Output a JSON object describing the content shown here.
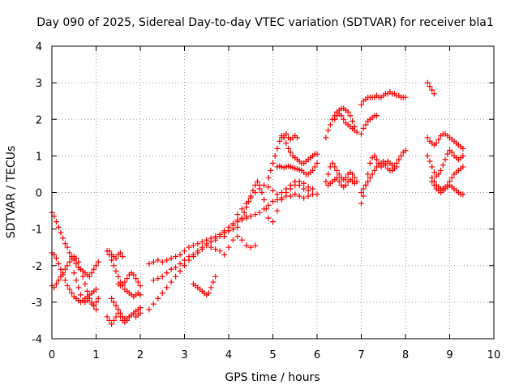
{
  "chart_data": {
    "type": "scatter",
    "title": "Day 090 of 2025, Sidereal Day-to-day VTEC variation (SDTVAR) for receiver bla1",
    "xlabel": "GPS time / hours",
    "ylabel": "SDTVAR / TECUs",
    "xlim": [
      0,
      10
    ],
    "ylim": [
      -4,
      4
    ],
    "xticks": [
      "0",
      "1",
      "2",
      "3",
      "4",
      "5",
      "6",
      "7",
      "8",
      "9",
      "10"
    ],
    "yticks": [
      "-4",
      "-3",
      "-2",
      "-1",
      "0",
      "1",
      "2",
      "3",
      "4"
    ],
    "grid": true,
    "legend": "none",
    "marker": "+",
    "color": "#ff0000",
    "series": [
      {
        "x": [
          0.0,
          0.05,
          0.1,
          0.15,
          0.2,
          0.25,
          0.3,
          0.35,
          0.4,
          0.45,
          0.5,
          0.55,
          0.6,
          0.65,
          0.7,
          0.75,
          0.8,
          0.85,
          0.9,
          0.95,
          1.0,
          1.05
        ],
        "y": [
          -0.55,
          -0.65,
          -0.8,
          -0.95,
          -1.1,
          -1.25,
          -1.4,
          -1.5,
          -1.65,
          -1.75,
          -1.85,
          -1.95,
          -2.05,
          -2.1,
          -2.15,
          -2.2,
          -2.25,
          -2.3,
          -2.2,
          -2.1,
          -2.0,
          -1.9
        ]
      },
      {
        "x": [
          0.0,
          0.05,
          0.1,
          0.15,
          0.2,
          0.25,
          0.3,
          0.35,
          0.4,
          0.45,
          0.5,
          0.55,
          0.6,
          0.65,
          0.7,
          0.75,
          0.8,
          0.85,
          0.9,
          0.95,
          1.0
        ],
        "y": [
          -1.65,
          -1.7,
          -1.8,
          -1.95,
          -2.1,
          -2.25,
          -2.4,
          -2.55,
          -2.65,
          -2.75,
          -2.85,
          -2.9,
          -2.95,
          -3.0,
          -2.95,
          -2.9,
          -2.85,
          -2.8,
          -2.75,
          -2.7,
          -2.65
        ]
      },
      {
        "x": [
          0.0,
          0.05,
          0.1,
          0.15,
          0.2,
          0.25,
          0.3,
          0.35,
          0.4,
          0.45,
          0.5,
          0.55,
          0.6,
          0.65,
          0.7,
          0.75,
          0.8,
          0.85,
          0.9,
          0.95,
          1.0
        ],
        "y": [
          -2.55,
          -2.6,
          -2.5,
          -2.4,
          -2.3,
          -2.2,
          -2.1,
          -2.0,
          -1.9,
          -1.8,
          -1.75,
          -1.8,
          -1.9,
          -2.1,
          -2.3,
          -2.5,
          -2.7,
          -2.9,
          -3.0,
          -3.1,
          -3.2
        ]
      },
      {
        "x": [
          0.5,
          0.55,
          0.6,
          0.65,
          0.7,
          0.75,
          0.8,
          0.85,
          0.9,
          0.95,
          1.0,
          1.05
        ],
        "y": [
          -2.2,
          -2.4,
          -2.6,
          -2.8,
          -2.95,
          -3.0,
          -2.95,
          -2.9,
          -3.05,
          -3.1,
          -3.0,
          -2.9
        ]
      },
      {
        "x": [
          1.25,
          1.3,
          1.35,
          1.4,
          1.45,
          1.5,
          1.55,
          1.6,
          1.65,
          1.7,
          1.75,
          1.8,
          1.85,
          1.9,
          1.95,
          2.0
        ],
        "y": [
          -1.6,
          -1.7,
          -1.85,
          -2.0,
          -2.15,
          -2.3,
          -2.45,
          -2.55,
          -2.65,
          -2.7,
          -2.75,
          -2.8,
          -2.85,
          -2.8,
          -2.75,
          -2.8
        ]
      },
      {
        "x": [
          1.3,
          1.35,
          1.4,
          1.45,
          1.5,
          1.55,
          1.6
        ],
        "y": [
          -1.6,
          -1.7,
          -1.75,
          -1.8,
          -1.7,
          -1.65,
          -1.75
        ]
      },
      {
        "x": [
          1.25,
          1.3,
          1.35,
          1.4,
          1.45,
          1.5,
          1.55,
          1.6,
          1.65,
          1.7,
          1.75,
          1.8,
          1.85,
          1.9,
          1.95,
          2.0
        ],
        "y": [
          -3.4,
          -3.5,
          -3.6,
          -3.5,
          -3.4,
          -3.3,
          -3.4,
          -3.5,
          -3.55,
          -3.5,
          -3.4,
          -3.35,
          -3.3,
          -3.4,
          -3.35,
          -3.3
        ]
      },
      {
        "x": [
          1.35,
          1.4,
          1.45,
          1.5,
          1.55,
          1.6,
          1.65,
          1.7,
          1.75,
          1.8,
          1.85,
          1.9,
          1.95,
          2.0
        ],
        "y": [
          -2.9,
          -3.0,
          -3.1,
          -3.2,
          -3.3,
          -3.4,
          -3.45,
          -3.45,
          -3.4,
          -3.35,
          -3.3,
          -3.25,
          -3.2,
          -3.15
        ]
      },
      {
        "x": [
          1.5,
          1.55,
          1.6,
          1.65,
          1.7,
          1.75,
          1.8,
          1.85,
          1.9,
          1.95,
          2.0
        ],
        "y": [
          -2.5,
          -2.55,
          -2.5,
          -2.45,
          -2.35,
          -2.25,
          -2.2,
          -2.25,
          -2.35,
          -2.45,
          -2.55
        ]
      },
      {
        "x": [
          2.2,
          2.3,
          2.4,
          2.5,
          2.6,
          2.7,
          2.8,
          2.9,
          3.0,
          3.1,
          3.2,
          3.3,
          3.4,
          3.5,
          3.6,
          3.7,
          3.8,
          3.9,
          4.0,
          4.1,
          4.2
        ],
        "y": [
          -1.95,
          -1.9,
          -1.85,
          -1.9,
          -1.85,
          -1.8,
          -1.75,
          -1.7,
          -1.6,
          -1.5,
          -1.45,
          -1.4,
          -1.35,
          -1.3,
          -1.25,
          -1.2,
          -1.15,
          -1.1,
          -1.05,
          -1.0,
          -0.95
        ]
      },
      {
        "x": [
          2.2,
          2.3,
          2.4,
          2.5,
          2.6,
          2.7,
          2.8,
          2.9,
          3.0,
          3.1,
          3.2,
          3.3,
          3.4,
          3.5,
          3.6,
          3.7,
          3.8,
          3.9,
          4.0,
          4.1,
          4.2,
          4.3,
          4.4
        ],
        "y": [
          -3.2,
          -3.05,
          -2.9,
          -2.75,
          -2.6,
          -2.45,
          -2.3,
          -2.15,
          -2.0,
          -1.85,
          -1.75,
          -1.65,
          -1.55,
          -1.45,
          -1.35,
          -1.25,
          -1.15,
          -1.05,
          -0.95,
          -0.85,
          -0.75,
          -0.7,
          -0.65
        ]
      },
      {
        "x": [
          2.3,
          2.4,
          2.5,
          2.6,
          2.7,
          2.8,
          2.9,
          3.0,
          3.1,
          3.2,
          3.3,
          3.4,
          3.5,
          3.6,
          3.7,
          3.8,
          3.9,
          4.0
        ],
        "y": [
          -2.4,
          -2.35,
          -2.3,
          -2.2,
          -2.1,
          -2.05,
          -1.95,
          -1.85,
          -1.75,
          -1.7,
          -1.6,
          -1.5,
          -1.4,
          -1.35,
          -1.3,
          -1.2,
          -1.1,
          -1.05
        ]
      },
      {
        "x": [
          3.2,
          3.25,
          3.3,
          3.35,
          3.4,
          3.45,
          3.5,
          3.55,
          3.6,
          3.65,
          3.7
        ],
        "y": [
          -2.5,
          -2.55,
          -2.6,
          -2.65,
          -2.7,
          -2.75,
          -2.8,
          -2.75,
          -2.6,
          -2.45,
          -2.3
        ]
      },
      {
        "x": [
          3.6,
          3.7,
          3.8,
          3.9,
          4.0,
          4.1,
          4.2,
          4.3,
          4.4,
          4.5,
          4.6
        ],
        "y": [
          -1.5,
          -1.55,
          -1.6,
          -1.7,
          -1.5,
          -1.3,
          -1.2,
          -1.3,
          -1.45,
          -1.5,
          -1.45
        ]
      },
      {
        "x": [
          3.9,
          4.0,
          4.1,
          4.2,
          4.3,
          4.4,
          4.5,
          4.6,
          4.7,
          4.8,
          4.9,
          5.0,
          5.1,
          5.2,
          5.3,
          5.4,
          5.5,
          5.6,
          5.7,
          5.8,
          5.9,
          6.0
        ],
        "y": [
          -1.2,
          -1.05,
          -0.9,
          -0.8,
          -0.75,
          -0.7,
          -0.65,
          -0.6,
          -0.55,
          -0.45,
          -0.35,
          -0.25,
          -0.2,
          -0.15,
          -0.1,
          -0.1,
          -0.05,
          -0.1,
          -0.15,
          -0.1,
          -0.05,
          -0.05
        ]
      },
      {
        "x": [
          4.2,
          4.3,
          4.4,
          4.5,
          4.6,
          4.7,
          4.8,
          4.9,
          5.0,
          5.1,
          5.2,
          5.3,
          5.4,
          5.5,
          5.6,
          5.7,
          5.8
        ],
        "y": [
          -0.6,
          -0.45,
          -0.3,
          -0.15,
          0.0,
          0.1,
          0.2,
          0.15,
          0.05,
          -0.05,
          0.0,
          0.1,
          0.2,
          0.3,
          0.2,
          0.1,
          0.05
        ]
      },
      {
        "x": [
          4.3,
          4.35,
          4.4,
          4.45,
          4.5,
          4.55,
          4.6,
          4.65,
          4.7,
          4.75,
          4.8,
          4.85,
          4.9
        ],
        "y": [
          -0.7,
          -0.55,
          -0.4,
          -0.25,
          -0.1,
          0.05,
          0.2,
          0.3,
          0.2,
          0.0,
          -0.2,
          -0.45,
          -0.7
        ]
      },
      {
        "x": [
          4.9,
          4.95,
          5.0,
          5.05,
          5.1,
          5.15,
          5.2,
          5.25,
          5.3,
          5.35,
          5.4,
          5.45,
          5.5,
          5.55,
          5.6,
          5.65,
          5.7,
          5.75,
          5.8,
          5.85,
          5.9,
          5.95,
          6.0
        ],
        "y": [
          0.4,
          0.6,
          0.8,
          1.0,
          1.2,
          1.4,
          1.55,
          1.5,
          1.35,
          1.2,
          1.1,
          1.0,
          0.95,
          0.9,
          0.85,
          0.8,
          0.8,
          0.85,
          0.9,
          0.95,
          1.0,
          1.05,
          1.05
        ]
      },
      {
        "x": [
          5.0,
          5.1,
          5.2,
          5.3,
          5.4,
          5.5,
          5.6,
          5.7,
          5.8,
          5.9
        ],
        "y": [
          -0.8,
          -0.5,
          -0.2,
          0.0,
          0.1,
          0.2,
          0.3,
          0.25,
          0.15,
          0.1
        ]
      },
      {
        "x": [
          5.1,
          5.15,
          5.2,
          5.25,
          5.3,
          5.35,
          5.4,
          5.45,
          5.5,
          5.55,
          5.6,
          5.65,
          5.7,
          5.75,
          5.8,
          5.85,
          5.9,
          5.95,
          6.0
        ],
        "y": [
          0.7,
          0.72,
          0.7,
          0.68,
          0.7,
          0.72,
          0.7,
          0.68,
          0.66,
          0.64,
          0.62,
          0.6,
          0.55,
          0.5,
          0.5,
          0.55,
          0.6,
          0.7,
          0.8
        ]
      },
      {
        "x": [
          5.2,
          5.25,
          5.3,
          5.35,
          5.4,
          5.45,
          5.5,
          5.55
        ],
        "y": [
          1.5,
          1.55,
          1.6,
          1.5,
          1.45,
          1.5,
          1.55,
          1.5
        ]
      },
      {
        "x": [
          6.2,
          6.25,
          6.3,
          6.35,
          6.4,
          6.45,
          6.5,
          6.55,
          6.6,
          6.65,
          6.7,
          6.75,
          6.8,
          6.85,
          6.9
        ],
        "y": [
          1.5,
          1.7,
          1.85,
          2.0,
          2.1,
          2.2,
          2.25,
          2.3,
          2.3,
          2.25,
          2.2,
          2.1,
          1.95,
          1.8,
          1.65
        ]
      },
      {
        "x": [
          6.4,
          6.45,
          6.5,
          6.55,
          6.6,
          6.65,
          6.7,
          6.75,
          6.8,
          6.85
        ],
        "y": [
          2.0,
          2.1,
          2.15,
          2.1,
          2.0,
          1.9,
          1.85,
          1.8,
          1.75,
          1.7
        ]
      },
      {
        "x": [
          6.2,
          6.25,
          6.3,
          6.35,
          6.4,
          6.45,
          6.5,
          6.55,
          6.6,
          6.65,
          6.7,
          6.75,
          6.8,
          6.85,
          6.9
        ],
        "y": [
          0.3,
          0.5,
          0.7,
          0.8,
          0.7,
          0.6,
          0.5,
          0.4,
          0.35,
          0.4,
          0.5,
          0.55,
          0.5,
          0.4,
          0.3
        ]
      },
      {
        "x": [
          6.25,
          6.3,
          6.35,
          6.4,
          6.45,
          6.5,
          6.55,
          6.6,
          6.65,
          6.7,
          6.75,
          6.8,
          6.85
        ],
        "y": [
          0.2,
          0.25,
          0.3,
          0.35,
          0.4,
          0.3,
          0.2,
          0.15,
          0.2,
          0.3,
          0.35,
          0.3,
          0.25
        ]
      },
      {
        "x": [
          7.0,
          7.05,
          7.1,
          7.15,
          7.2,
          7.25,
          7.3,
          7.35,
          7.4,
          7.45,
          7.5,
          7.55,
          7.6,
          7.65,
          7.7,
          7.75,
          7.8,
          7.85,
          7.9,
          7.95,
          8.0
        ],
        "y": [
          2.4,
          2.5,
          2.55,
          2.6,
          2.6,
          2.6,
          2.6,
          2.65,
          2.6,
          2.6,
          2.65,
          2.7,
          2.7,
          2.75,
          2.7,
          2.7,
          2.65,
          2.65,
          2.6,
          2.6,
          2.6
        ]
      },
      {
        "x": [
          7.0,
          7.05,
          7.1,
          7.15,
          7.2,
          7.25,
          7.3,
          7.35
        ],
        "y": [
          1.6,
          1.75,
          1.85,
          1.95,
          2.0,
          2.05,
          2.1,
          2.1
        ]
      },
      {
        "x": [
          7.0,
          7.05,
          7.1,
          7.15,
          7.2,
          7.25,
          7.3,
          7.35,
          7.4,
          7.45,
          7.5,
          7.55,
          7.6,
          7.65,
          7.7,
          7.75,
          7.8,
          7.85,
          7.9,
          7.95,
          8.0
        ],
        "y": [
          -0.3,
          -0.1,
          0.2,
          0.5,
          0.8,
          0.95,
          1.0,
          0.9,
          0.8,
          0.7,
          0.75,
          0.8,
          0.85,
          0.8,
          0.75,
          0.7,
          0.8,
          0.9,
          1.0,
          1.1,
          1.15
        ]
      },
      {
        "x": [
          7.0,
          7.05,
          7.1,
          7.15,
          7.2,
          7.25,
          7.3,
          7.35,
          7.4,
          7.45,
          7.5,
          7.55,
          7.6,
          7.65,
          7.7,
          7.75,
          7.8
        ],
        "y": [
          0.0,
          0.1,
          0.2,
          0.3,
          0.4,
          0.5,
          0.6,
          0.7,
          0.75,
          0.8,
          0.85,
          0.75,
          0.65,
          0.6,
          0.6,
          0.65,
          0.7
        ]
      },
      {
        "x": [
          8.5,
          8.55,
          8.6,
          8.65
        ],
        "y": [
          3.0,
          2.9,
          2.8,
          2.7
        ]
      },
      {
        "x": [
          8.5,
          8.55,
          8.6,
          8.65,
          8.7,
          8.75,
          8.8,
          8.85,
          8.9,
          8.95,
          9.0,
          9.05,
          9.1,
          9.15,
          9.2,
          9.25,
          9.3
        ],
        "y": [
          1.5,
          1.4,
          1.35,
          1.3,
          1.35,
          1.45,
          1.55,
          1.6,
          1.6,
          1.55,
          1.5,
          1.45,
          1.4,
          1.35,
          1.3,
          1.25,
          1.2
        ]
      },
      {
        "x": [
          8.5,
          8.55,
          8.6,
          8.65,
          8.7,
          8.75,
          8.8,
          8.85,
          8.9,
          8.95,
          9.0,
          9.05,
          9.1,
          9.15,
          9.2,
          9.25,
          9.3
        ],
        "y": [
          1.0,
          0.85,
          0.7,
          0.55,
          0.45,
          0.5,
          0.6,
          0.75,
          0.9,
          1.05,
          1.15,
          1.1,
          1.0,
          0.95,
          0.9,
          0.95,
          1.0
        ]
      },
      {
        "x": [
          8.6,
          8.65,
          8.7,
          8.75,
          8.8,
          8.85,
          8.9,
          8.95,
          9.0,
          9.05,
          9.1,
          9.15,
          9.2,
          9.25,
          9.3
        ],
        "y": [
          0.4,
          0.3,
          0.2,
          0.15,
          0.1,
          0.1,
          0.15,
          0.2,
          0.3,
          0.4,
          0.5,
          0.55,
          0.6,
          0.65,
          0.7
        ]
      },
      {
        "x": [
          8.6,
          8.65,
          8.7,
          8.75,
          8.8,
          8.85,
          8.9,
          8.95,
          9.0,
          9.05,
          9.1,
          9.15,
          9.2,
          9.25,
          9.3
        ],
        "y": [
          0.3,
          0.2,
          0.1,
          0.05,
          0.0,
          0.05,
          0.1,
          0.15,
          0.2,
          0.15,
          0.1,
          0.05,
          0.0,
          -0.05,
          -0.05
        ]
      }
    ]
  }
}
